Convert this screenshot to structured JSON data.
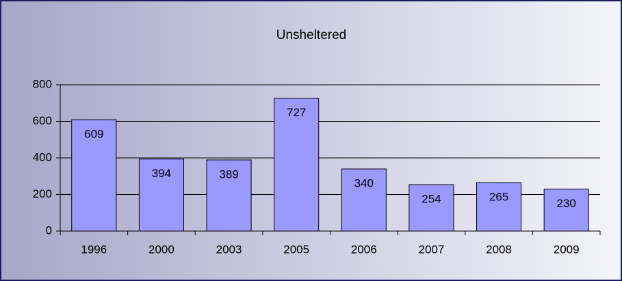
{
  "chart_data": {
    "type": "bar",
    "title": "Unsheltered",
    "categories": [
      "1996",
      "2000",
      "2003",
      "2005",
      "2006",
      "2007",
      "2008",
      "2009"
    ],
    "values": [
      609,
      394,
      389,
      727,
      340,
      254,
      265,
      230
    ],
    "color": "#9999ff",
    "ylim": [
      0,
      800
    ],
    "yticks": [
      0,
      200,
      400,
      600,
      800
    ],
    "grid": true
  }
}
